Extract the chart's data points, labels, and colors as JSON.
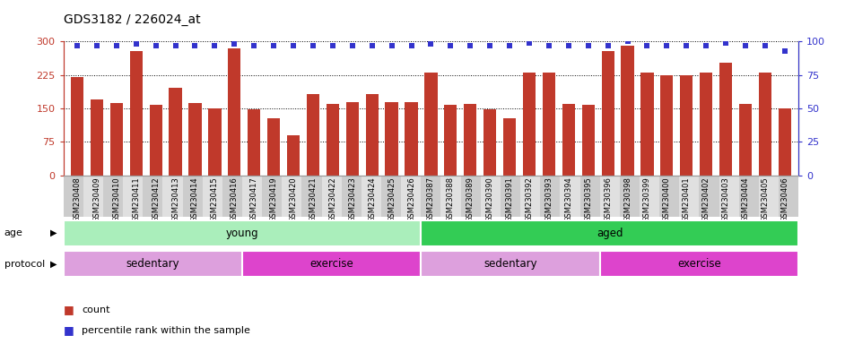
{
  "title": "GDS3182 / 226024_at",
  "samples": [
    "GSM230408",
    "GSM230409",
    "GSM230410",
    "GSM230411",
    "GSM230412",
    "GSM230413",
    "GSM230414",
    "GSM230415",
    "GSM230416",
    "GSM230417",
    "GSM230419",
    "GSM230420",
    "GSM230421",
    "GSM230422",
    "GSM230423",
    "GSM230424",
    "GSM230425",
    "GSM230426",
    "GSM230387",
    "GSM230388",
    "GSM230389",
    "GSM230390",
    "GSM230391",
    "GSM230392",
    "GSM230393",
    "GSM230394",
    "GSM230395",
    "GSM230396",
    "GSM230398",
    "GSM230399",
    "GSM230400",
    "GSM230401",
    "GSM230402",
    "GSM230403",
    "GSM230404",
    "GSM230405",
    "GSM230406"
  ],
  "counts": [
    220,
    170,
    162,
    278,
    158,
    195,
    162,
    150,
    285,
    148,
    127,
    90,
    182,
    160,
    163,
    182,
    163,
    163,
    230,
    158,
    160,
    148,
    127,
    230,
    230,
    160,
    158,
    278,
    290,
    230,
    225,
    225,
    230,
    252,
    160,
    230,
    150
  ],
  "percentiles": [
    97,
    97,
    97,
    98,
    97,
    97,
    97,
    97,
    98,
    97,
    97,
    97,
    97,
    97,
    97,
    97,
    97,
    97,
    98,
    97,
    97,
    97,
    97,
    99,
    97,
    97,
    97,
    97,
    100,
    97,
    97,
    97,
    97,
    99,
    97,
    97,
    93
  ],
  "bar_color": "#c0392b",
  "dot_color": "#3333cc",
  "ylim_left": [
    0,
    300
  ],
  "ylim_right": [
    0,
    100
  ],
  "yticks_left": [
    0,
    75,
    150,
    225,
    300
  ],
  "yticks_right": [
    0,
    25,
    50,
    75,
    100
  ],
  "groups": {
    "age": [
      {
        "label": "young",
        "start": 0,
        "end": 18,
        "color": "#aaeebb"
      },
      {
        "label": "aged",
        "start": 18,
        "end": 37,
        "color": "#33cc55"
      }
    ],
    "protocol": [
      {
        "label": "sedentary",
        "start": 0,
        "end": 9,
        "color": "#dda0dd"
      },
      {
        "label": "exercise",
        "start": 9,
        "end": 18,
        "color": "#dd44cc"
      },
      {
        "label": "sedentary",
        "start": 18,
        "end": 27,
        "color": "#dda0dd"
      },
      {
        "label": "exercise",
        "start": 27,
        "end": 37,
        "color": "#dd44cc"
      }
    ]
  },
  "plot_bg": "#ffffff",
  "fig_bg": "#ffffff",
  "n_sedentary_young": 9,
  "n_exercise_young": 9,
  "n_sedentary_aged": 9,
  "n_exercise_aged": 10
}
